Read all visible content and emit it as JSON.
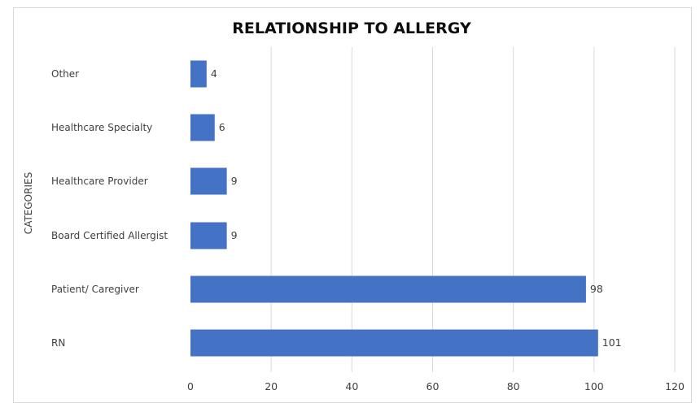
{
  "chart_data": {
    "type": "bar",
    "orientation": "horizontal",
    "title": "RELATIONSHIP TO ALLERGY",
    "ylabel": "CATEGORIES",
    "xlabel": "",
    "categories": [
      "Other",
      "Healthcare Specialty",
      "Healthcare Provider",
      "Board Certified Allergist",
      "Patient/ Caregiver",
      "RN"
    ],
    "values": [
      4,
      6,
      9,
      9,
      98,
      101
    ],
    "xlim": [
      0,
      120
    ],
    "x_ticks": [
      0,
      20,
      40,
      60,
      80,
      100,
      120
    ],
    "grid": true,
    "data_labels": true,
    "legend": "none",
    "bar_color": "#4472C4"
  }
}
